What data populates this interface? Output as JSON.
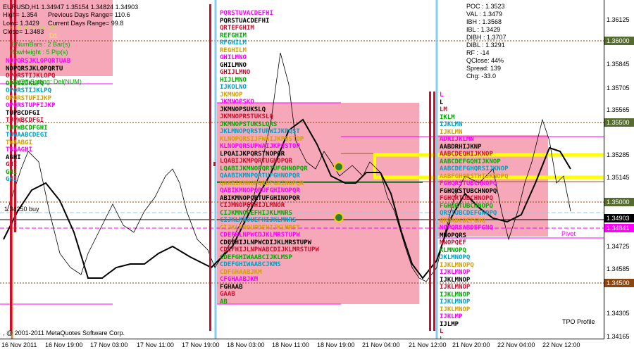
{
  "window": {
    "title": "EURUSD,H1  1.34947 1.35154 1.34824 1.34903",
    "copyright": ", @ 2001-2011 MetaQuotes Software Corp.",
    "indicator_name": "TPO Profile"
  },
  "info_panel": {
    "high": "High= 1.354",
    "prev_range": "Previous Days Range= 110.6",
    "low": "Low= 1.3429",
    "curr_range": "Current Days Range= 99.8",
    "close": "Close= 1.3483",
    "hidden_label": "Hide Info: Del(H)",
    "period": "D1",
    "ib_num_bars": "IBNumBars      : 2 Bar(s)",
    "row_height": "RowHeight      : 5 Pip(s)",
    "onoff": "On/Off Setting: Del(NUM)",
    "buy_label": "1.34250 buy"
  },
  "stats": {
    "poc": "POC    : 1.3523",
    "val": "VAL    : 1.3479",
    "ibh": "IBH    : 1.3568",
    "ibl": "IBL    : 1.3429",
    "dibh": "DIBH   : 1.3707",
    "dibl": "DIBL   : 1.3291",
    "rf": "RF     : -14",
    "qclose": "QClose: 44%",
    "spread": "Spread: 139",
    "chg": "Chg:     -33.0"
  },
  "price_axis": {
    "ticks": [
      "1.36125",
      "1.35845",
      "1.35705",
      "1.35565",
      "1.35285",
      "1.35145",
      "1.34725",
      "1.34585",
      "1.34305",
      "1.34165"
    ],
    "tags": [
      {
        "label": "1.36000",
        "color": "#556b2f"
      },
      {
        "label": "1.35500",
        "color": "#556b2f"
      },
      {
        "label": "1.35000",
        "color": "#556b2f"
      },
      {
        "label": "1.34903",
        "color": "#000000"
      },
      {
        "label": "1.34841",
        "color": "#ff00ff"
      },
      {
        "label": "1.34500",
        "color": "#8b4513"
      }
    ]
  },
  "time_axis": {
    "ticks": [
      "16 Nov 2011",
      "16 Nov 19:00",
      "17 Nov 03:00",
      "17 Nov 11:00",
      "17 Nov 19:00",
      "18 Nov 03:00",
      "18 Nov 11:00",
      "18 Nov 19:00",
      "21 Nov 04:00",
      "21 Nov 12:00",
      "21 Nov 20:00",
      "22 Nov 04:00",
      "22 Nov 12:00"
    ]
  },
  "pivot_label": "Pivot",
  "tpo": {
    "col1": [
      "NOPQRSJKLOPQRTUAB",
      "NOPQRSJKLOPQRTU",
      "OPQRSTIJKLOPQ",
      "OPQSIJKLPQ",
      "OPQRSTIJKLPQ",
      "OPQRSTUFIJKP",
      "OPQRSTUPFIJKP",
      "TUPBCDFGI",
      "TUPWBCDFGI",
      "TUPWBCDFGHI",
      "TUWAABCDEGI",
      "TWAABGI",
      "TWAAGHI",
      "AGHI",
      "GHI",
      "GHI",
      "GHI"
    ],
    "col2": [
      "PQRSTUVACDEFHI",
      "PQRSTUACDEFHI",
      "QRTEFGHIM",
      "REFGHIM",
      "RFGHILM",
      "REGHILM",
      "GHILMNO",
      "GHILMNO",
      "GHIJLMNO",
      "HIJLMNO",
      "IJKOLNO",
      "JKMNOP",
      "JKMNOPSKO",
      "JKMNOPSUKSLQ",
      "JKMNOPRSTUKSLQ",
      "JKMNOPSTUKSLQRS",
      "JKLMNOPQRSTUPWIJKPQST",
      "KLNOPQRSIJFWAIJKPQSTOP",
      "KLNOPQRSUPWAIJKPQSTOP",
      "LPQAIJKPQRSTNOPQR",
      "LQABIJKMPQRTUGNOPQR",
      "LQABIJKMNOPQRTUFGHNOPQR",
      "QAABIKMNPQRTUFGHNOPQR",
      "QAABIKMNOPQRUFGHINOPQR",
      "QABIKMNOPQRUFGHINOPQR",
      "ABIKMNOPQRTUFGHINOPQR",
      "CIJMNOPEFHIJLMNOR",
      "CIJKMNOPEFHIJKLMNRS",
      "CIJKLMNOUEFHIJKLMNRS",
      "CIJKLMNOUPDEHIJKLMRST",
      "CDEFHLNPWCDJKLMRSTUPW",
      "CDEFHIJLNPWCDIJKLMRSTUPW",
      "CDEFHIJLNPWABCDIJKLMRSTUPW",
      "CDEFGHIWAABCIJKLMSP",
      "CDEFGHIWAABCJKMS",
      "CDFGHAABJKM",
      "CFGHAABJKM",
      "FGHAAB",
      "GAAB",
      "AB"
    ],
    "col3": [
      "L",
      "L",
      "LM",
      "IKLM",
      "IJKLMN",
      "IJKLMN",
      "ADRIJKLMN",
      "AABDRHIJKNP",
      "AABCDEQHIJKNOP",
      "AABCDEFGQHIJKNOP",
      "AABCDEFGHQRSIJKNOP",
      "AABFGHQRSTHIJKNOPQ",
      "FGHQRSTUBCHNOPQ",
      "FGHQRSTUBCHNOPQ",
      "FGHQRTUBCHNOPQ",
      "FGHQRTUBCHNOPQ",
      "QRSTUBCDEFGNOPQ",
      "QRUABCDEFGNQ",
      "NOPQRSABDEFGNQ",
      "MNOPQRS",
      "MNOPQEF",
      "KLMNOPQ",
      "JKLMNOPQ",
      "IJKLMNOPQ",
      "IJKLMNOP",
      "IJKLMNOP",
      "IJKLMNOP",
      "IJKLMNOP",
      "IJKLMNOP",
      "IJKLMNOP",
      "IJKLMP",
      "IJLMP",
      "L",
      "L"
    ]
  },
  "colors": {
    "pink_box": "#f7a8b8",
    "vbar_red": "#c8102e",
    "vline_blue": "#87ceeb",
    "vline_orange": "#cd853f",
    "magenta": "#ff00ff",
    "yellow": "#ffff00"
  }
}
